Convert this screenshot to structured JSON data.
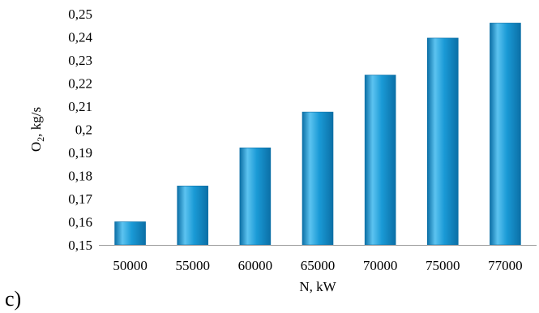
{
  "panel_label": "c)",
  "colors": {
    "bar_light": "#5cc3f0",
    "bar_mid": "#1a9ad6",
    "bar_dark": "#0b6fa6",
    "axis": "#9a9a9a"
  },
  "chart_data": {
    "type": "bar",
    "categories": [
      "50000",
      "55000",
      "60000",
      "65000",
      "70000",
      "75000",
      "77000"
    ],
    "values": [
      0.16,
      0.1755,
      0.192,
      0.2075,
      0.2235,
      0.2395,
      0.246
    ],
    "ylim": [
      0.15,
      0.25
    ],
    "yticks": [
      "0,15",
      "0,16",
      "0,17",
      "0,18",
      "0,19",
      "0,2",
      "0,21",
      "0,22",
      "0,23",
      "0,24",
      "0,25"
    ],
    "xlabel": "N, kW",
    "ylabel_main": "O",
    "ylabel_sub": "2",
    "ylabel_unit": ", kg/s",
    "grid": false
  }
}
